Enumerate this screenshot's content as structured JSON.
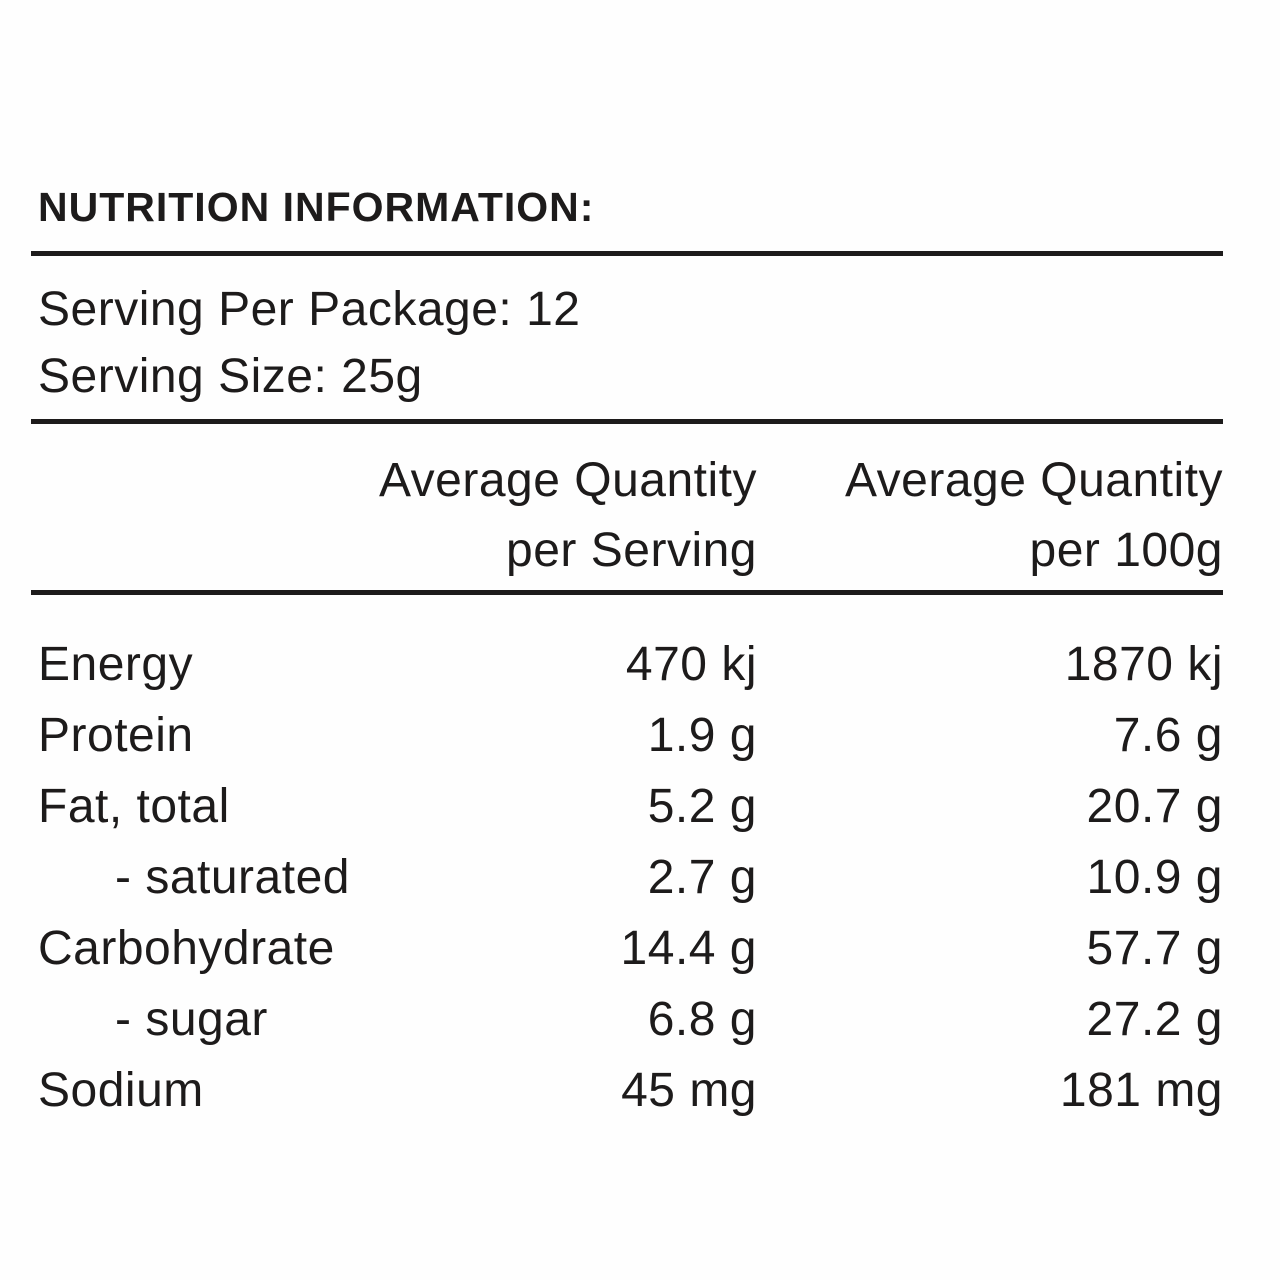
{
  "title": "NUTRITION INFORMATION:",
  "serving_info": {
    "per_package": "Serving Per Package: 12",
    "size": "Serving Size: 25g"
  },
  "column_headers": {
    "per_serving": {
      "line1": "Average Quantity",
      "line2": "per Serving"
    },
    "per_100g": {
      "line1": "Average Quantity",
      "line2": "per 100g"
    }
  },
  "rows": [
    {
      "label": "Energy",
      "per_serving": "470 kj",
      "per_100g": "1870 kj"
    },
    {
      "label": "Protein",
      "per_serving": "1.9 g",
      "per_100g": "7.6 g"
    },
    {
      "label": "Fat, total",
      "per_serving": "5.2 g",
      "per_100g": "20.7 g"
    },
    {
      "label": "- saturated",
      "per_serving": "2.7 g",
      "per_100g": "10.9 g"
    },
    {
      "label": "Carbohydrate",
      "per_serving": "14.4 g",
      "per_100g": "57.7 g"
    },
    {
      "label": "- sugar",
      "per_serving": "6.8 g",
      "per_100g": "27.2 g"
    },
    {
      "label": "Sodium",
      "per_serving": "45 mg",
      "per_100g": "181 mg"
    }
  ],
  "colors": {
    "text": "#1d1b1b",
    "rule": "#1d1b1b",
    "background": "#fefefe"
  }
}
